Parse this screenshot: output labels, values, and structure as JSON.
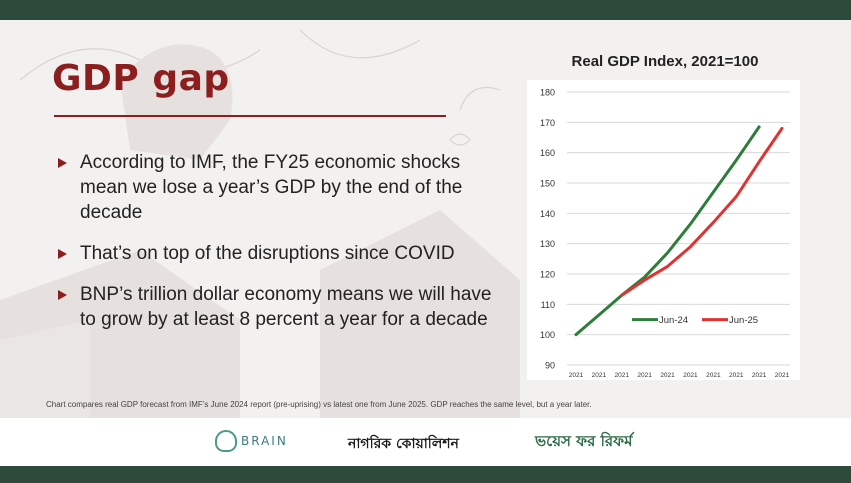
{
  "slide": {
    "title": "GDP gap",
    "bullets": [
      "According to IMF, the FY25 economic shocks mean we lose a year’s GDP by the end of the decade",
      "That’s on top of the disruptions since COVID",
      "BNP’s trillion dollar economy means we will have to grow by at least 8 percent a year for a decade"
    ],
    "caption": "Chart compares real GDP forecast from IMF’s June 2024 report (pre-uprising) vs latest one from June 2025. GDP reaches the same level, but a year later."
  },
  "chart_data": {
    "type": "line",
    "title": "Real GDP Index, 2021=100",
    "categories": [
      "2021",
      "2021",
      "2021",
      "2021",
      "2021",
      "2021",
      "2021",
      "2021",
      "2021",
      "2021"
    ],
    "series": [
      {
        "name": "Jun-24",
        "color": "#2e7d3a",
        "values": [
          100,
          106.5,
          113,
          119,
          127,
          136.5,
          147,
          157.5,
          168.5,
          null
        ]
      },
      {
        "name": "Jun-25",
        "color": "#e03232",
        "values": [
          null,
          null,
          113,
          118,
          122.5,
          129,
          137,
          145.5,
          157,
          168
        ]
      }
    ],
    "ylim": [
      90,
      180
    ],
    "yticks": [
      90,
      100,
      110,
      120,
      130,
      140,
      150,
      160,
      170,
      180
    ],
    "grid": true,
    "legend_position": "bottom-right"
  },
  "logos": {
    "brain": "BRAIN",
    "nagorik": "নাগরিক কোয়ালিশন",
    "voice": "ভয়েস ফর রিফর্ম"
  },
  "colors": {
    "accent": "#8b1e1e",
    "bar": "#2d4a3a"
  }
}
